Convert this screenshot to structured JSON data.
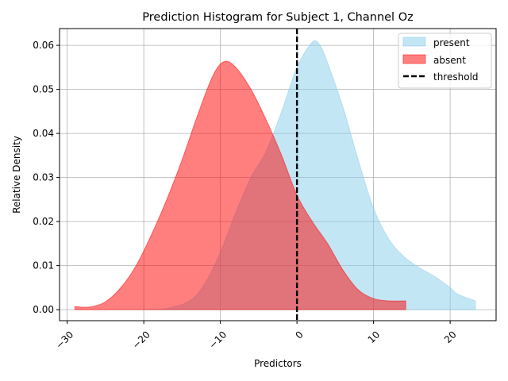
{
  "chart_data": {
    "type": "area",
    "title": "Prediction Histogram for Subject 1, Channel Oz",
    "xlabel": "Predictors",
    "ylabel": "Relative Density",
    "xlim": [
      -31,
      26
    ],
    "ylim": [
      -0.0025,
      0.0638
    ],
    "xticks": [
      -30,
      -20,
      -10,
      0,
      10,
      20
    ],
    "xtick_labels": [
      "−30",
      "−20",
      "−10",
      "0",
      "10",
      "20"
    ],
    "xtick_rotation": 45,
    "yticks": [
      0.0,
      0.01,
      0.02,
      0.03,
      0.04,
      0.05,
      0.06
    ],
    "ytick_labels": [
      "0.00",
      "0.01",
      "0.02",
      "0.03",
      "0.04",
      "0.05",
      "0.06"
    ],
    "grid": true,
    "legend_position": "upper right",
    "threshold": 0,
    "series": [
      {
        "name": "present",
        "color": "#87ceeb",
        "alpha": 0.5,
        "points": [
          [
            -20,
            0.0
          ],
          [
            -17,
            0.0003
          ],
          [
            -14,
            0.002
          ],
          [
            -12,
            0.006
          ],
          [
            -10,
            0.013
          ],
          [
            -8,
            0.022
          ],
          [
            -6,
            0.03
          ],
          [
            -4,
            0.036
          ],
          [
            -2,
            0.045
          ],
          [
            0,
            0.055
          ],
          [
            2,
            0.0607
          ],
          [
            3,
            0.06
          ],
          [
            4,
            0.056
          ],
          [
            6,
            0.046
          ],
          [
            8,
            0.034
          ],
          [
            10,
            0.023
          ],
          [
            12,
            0.016
          ],
          [
            14,
            0.012
          ],
          [
            16,
            0.0095
          ],
          [
            18,
            0.0075
          ],
          [
            20,
            0.005
          ],
          [
            21,
            0.0035
          ],
          [
            23.3,
            0.002
          ]
        ]
      },
      {
        "name": "absent",
        "color": "#ff0000",
        "alpha": 0.5,
        "points": [
          [
            -29,
            0.0007
          ],
          [
            -27,
            0.0006
          ],
          [
            -25,
            0.0018
          ],
          [
            -23,
            0.005
          ],
          [
            -21,
            0.01
          ],
          [
            -19,
            0.017
          ],
          [
            -17,
            0.025
          ],
          [
            -15,
            0.034
          ],
          [
            -13,
            0.044
          ],
          [
            -11,
            0.053
          ],
          [
            -9.5,
            0.0563
          ],
          [
            -8,
            0.055
          ],
          [
            -6,
            0.05
          ],
          [
            -4,
            0.043
          ],
          [
            -2,
            0.035
          ],
          [
            0,
            0.026
          ],
          [
            2,
            0.02
          ],
          [
            4,
            0.015
          ],
          [
            6,
            0.009
          ],
          [
            8,
            0.0045
          ],
          [
            10,
            0.0025
          ],
          [
            12,
            0.002
          ],
          [
            14.2,
            0.002
          ]
        ]
      }
    ],
    "threshold_series": {
      "name": "threshold",
      "color": "#000000",
      "style": "dashed"
    }
  }
}
